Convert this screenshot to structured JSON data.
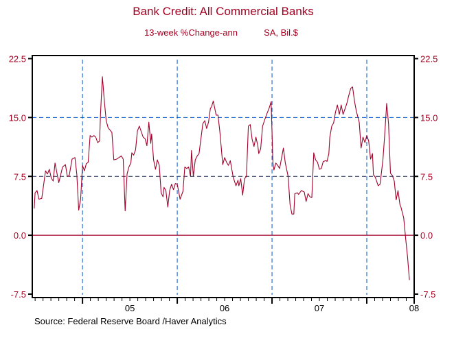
{
  "chart_data": {
    "type": "line",
    "title": "Bank Credit: All Commercial Banks",
    "subtitle_left": "13-week %Change-ann",
    "subtitle_right": "SA, Bil.$",
    "source": "Source:  Federal Reserve Board /Haver Analytics",
    "xlabel": "",
    "ylabel": "",
    "xlim": [
      2004.47,
      2008.5
    ],
    "ylim": [
      -7.5,
      22.5
    ],
    "yticks": [
      22.5,
      15.0,
      7.5,
      0.0,
      -7.5
    ],
    "ytick_labels": [
      "22.5",
      "15.0",
      "7.5",
      "0.0",
      "-7.5"
    ],
    "xticks": [
      {
        "label": "05",
        "at": 2005.5
      },
      {
        "label": "06",
        "at": 2006.5
      },
      {
        "label": "07",
        "at": 2007.5
      },
      {
        "label": "08",
        "at": 2008.5
      }
    ],
    "year_gridlines": [
      2005,
      2006,
      2007,
      2008
    ],
    "h_gridlines": [
      15.0,
      7.5
    ],
    "zero_line": 0,
    "grid": true,
    "colors": {
      "series": "#a0002a",
      "text": "#a50021",
      "grid": "#0055cc",
      "zero": "#a0002a"
    },
    "series": [
      {
        "name": "Bank Credit 13-week %Change-ann",
        "points": [
          [
            2004.49,
            3.4
          ],
          [
            2004.5,
            5.4
          ],
          [
            2004.52,
            5.7
          ],
          [
            2004.54,
            4.6
          ],
          [
            2004.57,
            4.7
          ],
          [
            2004.61,
            8.2
          ],
          [
            2004.63,
            7.8
          ],
          [
            2004.65,
            8.4
          ],
          [
            2004.67,
            7.3
          ],
          [
            2004.69,
            6.9
          ],
          [
            2004.71,
            9.2
          ],
          [
            2004.75,
            6.7
          ],
          [
            2004.79,
            8.7
          ],
          [
            2004.82,
            9.0
          ],
          [
            2004.84,
            7.5
          ],
          [
            2004.86,
            7.6
          ],
          [
            2004.89,
            9.7
          ],
          [
            2004.92,
            9.9
          ],
          [
            2004.94,
            7.8
          ],
          [
            2004.96,
            3.2
          ],
          [
            2004.98,
            4.6
          ],
          [
            2005.0,
            8.9
          ],
          [
            2005.02,
            8.2
          ],
          [
            2005.04,
            9.1
          ],
          [
            2005.06,
            9.3
          ],
          [
            2005.08,
            12.7
          ],
          [
            2005.1,
            12.5
          ],
          [
            2005.12,
            12.7
          ],
          [
            2005.14,
            12.5
          ],
          [
            2005.16,
            11.8
          ],
          [
            2005.18,
            12.0
          ],
          [
            2005.19,
            15.4
          ],
          [
            2005.21,
            20.2
          ],
          [
            2005.23,
            17.1
          ],
          [
            2005.25,
            14.6
          ],
          [
            2005.27,
            13.7
          ],
          [
            2005.31,
            13.1
          ],
          [
            2005.33,
            9.6
          ],
          [
            2005.36,
            9.7
          ],
          [
            2005.41,
            10.1
          ],
          [
            2005.43,
            9.7
          ],
          [
            2005.45,
            3.1
          ],
          [
            2005.47,
            7.8
          ],
          [
            2005.49,
            8.7
          ],
          [
            2005.51,
            9.2
          ],
          [
            2005.52,
            10.5
          ],
          [
            2005.54,
            10.2
          ],
          [
            2005.56,
            10.9
          ],
          [
            2005.58,
            13.3
          ],
          [
            2005.6,
            13.9
          ],
          [
            2005.64,
            12.5
          ],
          [
            2005.66,
            12.3
          ],
          [
            2005.68,
            11.4
          ],
          [
            2005.7,
            14.4
          ],
          [
            2005.72,
            11.7
          ],
          [
            2005.73,
            12.9
          ],
          [
            2005.75,
            9.6
          ],
          [
            2005.77,
            8.4
          ],
          [
            2005.79,
            9.6
          ],
          [
            2005.81,
            8.9
          ],
          [
            2005.83,
            5.4
          ],
          [
            2005.85,
            4.9
          ],
          [
            2005.86,
            6.1
          ],
          [
            2005.88,
            5.7
          ],
          [
            2005.9,
            3.6
          ],
          [
            2005.92,
            5.7
          ],
          [
            2005.94,
            6.5
          ],
          [
            2005.96,
            5.8
          ],
          [
            2005.98,
            6.6
          ],
          [
            2006.0,
            6.5
          ],
          [
            2006.03,
            4.6
          ],
          [
            2006.06,
            5.6
          ],
          [
            2006.08,
            8.7
          ],
          [
            2006.1,
            8.5
          ],
          [
            2006.12,
            8.7
          ],
          [
            2006.14,
            7.5
          ],
          [
            2006.15,
            10.8
          ],
          [
            2006.17,
            7.5
          ],
          [
            2006.19,
            9.6
          ],
          [
            2006.21,
            10.1
          ],
          [
            2006.23,
            10.4
          ],
          [
            2006.27,
            14.2
          ],
          [
            2006.29,
            14.6
          ],
          [
            2006.31,
            13.6
          ],
          [
            2006.33,
            14.4
          ],
          [
            2006.35,
            16.2
          ],
          [
            2006.36,
            16.3
          ],
          [
            2006.38,
            17.1
          ],
          [
            2006.41,
            15.3
          ],
          [
            2006.43,
            15.3
          ],
          [
            2006.45,
            13.1
          ],
          [
            2006.48,
            9.0
          ],
          [
            2006.5,
            9.9
          ],
          [
            2006.52,
            9.3
          ],
          [
            2006.54,
            8.9
          ],
          [
            2006.56,
            9.5
          ],
          [
            2006.59,
            7.4
          ],
          [
            2006.62,
            6.3
          ],
          [
            2006.64,
            7.0
          ],
          [
            2006.65,
            6.3
          ],
          [
            2006.67,
            7.2
          ],
          [
            2006.69,
            5.1
          ],
          [
            2006.71,
            7.2
          ],
          [
            2006.73,
            7.5
          ],
          [
            2006.75,
            13.9
          ],
          [
            2006.77,
            14.1
          ],
          [
            2006.79,
            12.2
          ],
          [
            2006.81,
            11.3
          ],
          [
            2006.83,
            12.5
          ],
          [
            2006.85,
            11.4
          ],
          [
            2006.86,
            10.4
          ],
          [
            2006.88,
            11.0
          ],
          [
            2006.9,
            13.9
          ],
          [
            2006.92,
            14.6
          ],
          [
            2006.94,
            15.3
          ],
          [
            2006.97,
            16.2
          ],
          [
            2006.99,
            17.0
          ],
          [
            2007.01,
            9.2
          ],
          [
            2007.02,
            8.3
          ],
          [
            2007.04,
            9.2
          ],
          [
            2007.06,
            8.9
          ],
          [
            2007.08,
            8.5
          ],
          [
            2007.12,
            11.1
          ],
          [
            2007.14,
            9.2
          ],
          [
            2007.17,
            7.5
          ],
          [
            2007.19,
            3.9
          ],
          [
            2007.21,
            2.7
          ],
          [
            2007.23,
            2.7
          ],
          [
            2007.24,
            5.3
          ],
          [
            2007.27,
            5.4
          ],
          [
            2007.28,
            5.2
          ],
          [
            2007.31,
            5.7
          ],
          [
            2007.34,
            5.5
          ],
          [
            2007.36,
            4.3
          ],
          [
            2007.38,
            5.3
          ],
          [
            2007.4,
            4.9
          ],
          [
            2007.42,
            4.8
          ],
          [
            2007.44,
            10.5
          ],
          [
            2007.46,
            9.6
          ],
          [
            2007.48,
            9.3
          ],
          [
            2007.5,
            8.4
          ],
          [
            2007.52,
            8.5
          ],
          [
            2007.54,
            9.4
          ],
          [
            2007.57,
            9.5
          ],
          [
            2007.58,
            9.4
          ],
          [
            2007.6,
            10.4
          ],
          [
            2007.61,
            12.5
          ],
          [
            2007.63,
            13.9
          ],
          [
            2007.65,
            14.3
          ],
          [
            2007.67,
            15.7
          ],
          [
            2007.69,
            16.6
          ],
          [
            2007.71,
            15.4
          ],
          [
            2007.73,
            16.6
          ],
          [
            2007.75,
            15.4
          ],
          [
            2007.77,
            16.1
          ],
          [
            2007.79,
            16.8
          ],
          [
            2007.81,
            17.8
          ],
          [
            2007.83,
            18.7
          ],
          [
            2007.85,
            18.9
          ],
          [
            2007.87,
            17.1
          ],
          [
            2007.89,
            15.8
          ],
          [
            2007.92,
            14.4
          ],
          [
            2007.94,
            11.1
          ],
          [
            2007.96,
            12.5
          ],
          [
            2007.98,
            11.8
          ],
          [
            2008.0,
            12.7
          ],
          [
            2008.02,
            12.0
          ],
          [
            2008.04,
            9.7
          ],
          [
            2008.06,
            10.4
          ],
          [
            2008.07,
            7.7
          ],
          [
            2008.09,
            7.4
          ],
          [
            2008.12,
            6.3
          ],
          [
            2008.14,
            6.5
          ],
          [
            2008.15,
            7.5
          ],
          [
            2008.17,
            9.6
          ],
          [
            2008.19,
            12.9
          ],
          [
            2008.21,
            16.8
          ],
          [
            2008.23,
            14.2
          ],
          [
            2008.25,
            7.9
          ],
          [
            2008.27,
            7.6
          ],
          [
            2008.29,
            6.9
          ],
          [
            2008.31,
            4.5
          ],
          [
            2008.33,
            5.7
          ],
          [
            2008.35,
            3.9
          ],
          [
            2008.36,
            3.6
          ],
          [
            2008.39,
            2.2
          ],
          [
            2008.41,
            -0.4
          ],
          [
            2008.43,
            -2.7
          ],
          [
            2008.45,
            -5.7
          ]
        ]
      }
    ]
  }
}
